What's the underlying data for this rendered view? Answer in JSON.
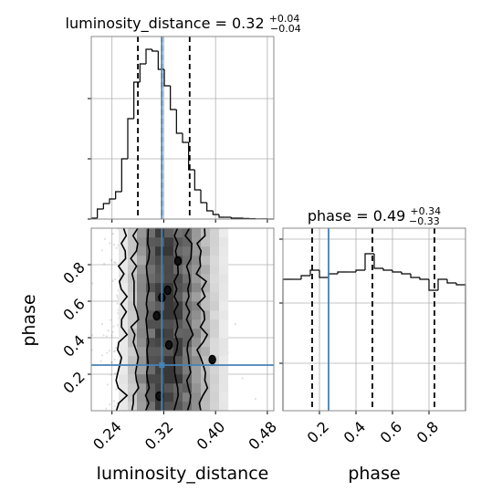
{
  "chart_data": {
    "type": "corner",
    "parameters": [
      "luminosity_distance",
      "phase"
    ],
    "truths": {
      "luminosity_distance": 0.317,
      "phase": 0.25
    },
    "truth_color": "#4682b4",
    "grid": true,
    "panels": [
      {
        "kind": "histogram",
        "parameter": "luminosity_distance",
        "title": {
          "base": "luminosity_distance = 0.32",
          "plus": "+0.04",
          "minus": "−0.04"
        },
        "xlim": [
          0.208,
          0.49
        ],
        "ylim": [
          0,
          1.0
        ],
        "quantiles": [
          0.28,
          0.317,
          0.36
        ],
        "bin_edges": [
          0.208,
          0.2174,
          0.2268,
          0.2362,
          0.2456,
          0.255,
          0.2644,
          0.2738,
          0.2832,
          0.2926,
          0.302,
          0.3114,
          0.3208,
          0.3302,
          0.3396,
          0.349,
          0.3584,
          0.3678,
          0.3772,
          0.3866,
          0.396,
          0.4054,
          0.4148,
          0.4242,
          0.4336,
          0.443,
          0.4524,
          0.4618,
          0.4712,
          0.4806,
          0.49
        ],
        "heights": [
          0.005,
          0.055,
          0.085,
          0.11,
          0.15,
          0.33,
          0.55,
          0.75,
          0.85,
          0.93,
          0.92,
          0.82,
          0.73,
          0.6,
          0.47,
          0.42,
          0.27,
          0.16,
          0.09,
          0.045,
          0.025,
          0.01,
          0.01,
          0.005,
          0.005,
          0.003,
          0.002,
          0.001,
          0.001,
          0.0
        ],
        "yticks": [
          0.0,
          0.33,
          0.66
        ]
      },
      {
        "kind": "histogram",
        "parameter": "phase",
        "title": {
          "base": "phase = 0.49",
          "plus": "+0.34",
          "minus": "−0.33"
        },
        "xlim": [
          0.0,
          1.0
        ],
        "ylim": [
          0,
          1.0
        ],
        "quantiles": [
          0.16,
          0.49,
          0.83
        ],
        "bin_edges": [
          0.0,
          0.05,
          0.1,
          0.15,
          0.2,
          0.25,
          0.3,
          0.35,
          0.4,
          0.45,
          0.5,
          0.55,
          0.6,
          0.65,
          0.7,
          0.75,
          0.8,
          0.85,
          0.9,
          0.95,
          1.0
        ],
        "heights": [
          0.72,
          0.72,
          0.74,
          0.77,
          0.73,
          0.75,
          0.76,
          0.76,
          0.77,
          0.86,
          0.78,
          0.77,
          0.76,
          0.75,
          0.73,
          0.72,
          0.66,
          0.72,
          0.7,
          0.69
        ],
        "yticks": [
          0.26,
          0.59,
          0.94
        ]
      },
      {
        "kind": "2d",
        "x": "luminosity_distance",
        "y": "phase",
        "xlim": [
          0.208,
          0.49
        ],
        "ylim": [
          0.0,
          1.0
        ],
        "grid_nx": 20,
        "grid_ny": 20,
        "x_profile": [
          0.01,
          0.03,
          0.06,
          0.12,
          0.3,
          0.55,
          0.8,
          0.95,
          1.0,
          0.9,
          0.72,
          0.55,
          0.38,
          0.22,
          0.12,
          0.06,
          0.03,
          0.015,
          0.007,
          0.003
        ],
        "y_profile": [
          0.92,
          0.95,
          0.97,
          1.0,
          0.98,
          0.96,
          0.97,
          1.0,
          0.98,
          0.96,
          1.0,
          0.97,
          0.95,
          0.97,
          0.99,
          0.96,
          0.93,
          0.96,
          0.94,
          0.92
        ],
        "scatter_count": 1500,
        "contour_levels": [
          0.2,
          0.45,
          0.7
        ]
      }
    ],
    "axes": {
      "luminosity_distance": {
        "label": "luminosity_distance",
        "ticks": [
          0.24,
          0.32,
          0.4,
          0.48
        ],
        "tick_labels": [
          "0.24",
          "0.32",
          "0.40",
          "0.48"
        ]
      },
      "phase": {
        "label": "phase",
        "ticks": [
          0.2,
          0.4,
          0.6,
          0.8
        ],
        "tick_labels": [
          "0.2",
          "0.4",
          "0.6",
          "0.8"
        ]
      }
    }
  }
}
